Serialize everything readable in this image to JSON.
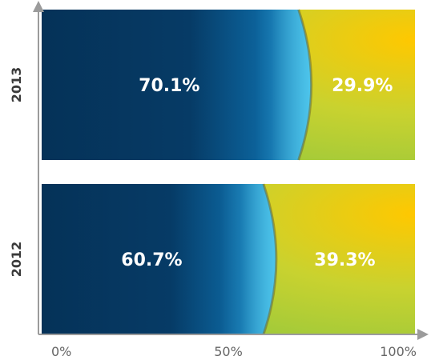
{
  "chart_data": {
    "type": "bar",
    "orientation": "horizontal",
    "stacked": true,
    "percent_stacked": true,
    "categories": [
      "2013",
      "2012"
    ],
    "series": [
      {
        "values": [
          70.1,
          60.7
        ],
        "labels": [
          "70.1%",
          "60.7%"
        ],
        "color": "#0d3c68"
      },
      {
        "values": [
          29.9,
          39.3
        ],
        "labels": [
          "29.9%",
          "39.3%"
        ],
        "color": "#8fc73e"
      }
    ],
    "xlim": [
      0,
      100
    ],
    "x_ticks": [
      "0%",
      "50%",
      "100%"
    ],
    "grid": false,
    "colors": {
      "dark_blue": "#053258",
      "mid_blue": "#0d6aa5",
      "light_blue": "#4ec6ec",
      "green": "#8ec63f",
      "yellow": "#ffc800",
      "axis": "#9b9b9b"
    }
  }
}
